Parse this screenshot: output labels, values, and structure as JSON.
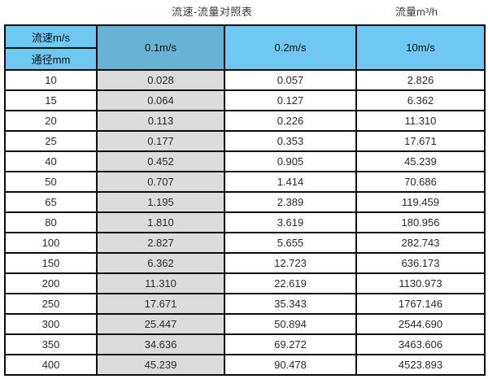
{
  "page": {
    "title": "流速-流量对照表",
    "unit_label": "流量m³/h"
  },
  "table": {
    "corner": {
      "top": "流速m/s",
      "bottom": "通径mm"
    },
    "columns": [
      "0.1m/s",
      "0.2m/s",
      "10m/s"
    ],
    "rows": [
      {
        "diameter": "10",
        "values": [
          "0.028",
          "0.057",
          "2.826"
        ]
      },
      {
        "diameter": "15",
        "values": [
          "0.064",
          "0.127",
          "6.362"
        ]
      },
      {
        "diameter": "20",
        "values": [
          "0.113",
          "0.226",
          "11.310"
        ]
      },
      {
        "diameter": "25",
        "values": [
          "0.177",
          "0.353",
          "17.671"
        ]
      },
      {
        "diameter": "40",
        "values": [
          "0.452",
          "0.905",
          "45.239"
        ]
      },
      {
        "diameter": "50",
        "values": [
          "0.707",
          "1.414",
          "70.686"
        ]
      },
      {
        "diameter": "65",
        "values": [
          "1.195",
          "2.389",
          "119.459"
        ]
      },
      {
        "diameter": "80",
        "values": [
          "1.810",
          "3.619",
          "180.956"
        ]
      },
      {
        "diameter": "100",
        "values": [
          "2.827",
          "5.655",
          "282.743"
        ]
      },
      {
        "diameter": "150",
        "values": [
          "6.362",
          "12.723",
          "636.173"
        ]
      },
      {
        "diameter": "200",
        "values": [
          "11.310",
          "22.619",
          "1130.973"
        ]
      },
      {
        "diameter": "250",
        "values": [
          "17.671",
          "35.343",
          "1767.146"
        ]
      },
      {
        "diameter": "300",
        "values": [
          "25.447",
          "50.894",
          "2544.690"
        ]
      },
      {
        "diameter": "350",
        "values": [
          "34.636",
          "69.272",
          "3463.606"
        ]
      },
      {
        "diameter": "400",
        "values": [
          "45.239",
          "90.478",
          "4523.893"
        ]
      }
    ]
  },
  "colors": {
    "header_light_blue": "#6fc8f2",
    "header_dark_blue": "#68b2d6",
    "highlight_column_gray": "#dcdcdc",
    "border_black": "#0d0d0d"
  },
  "chart_data": {
    "type": "table",
    "title": "流速-流量对照表",
    "units_note": "流量m³/h",
    "row_axis_label": "通径mm",
    "column_axis_label": "流速m/s",
    "columns": [
      "0.1m/s",
      "0.2m/s",
      "10m/s"
    ],
    "diameters_mm": [
      10,
      15,
      20,
      25,
      40,
      50,
      65,
      80,
      100,
      150,
      200,
      250,
      300,
      350,
      400
    ],
    "series": [
      {
        "name": "0.1m/s",
        "values": [
          0.028,
          0.064,
          0.113,
          0.177,
          0.452,
          0.707,
          1.195,
          1.81,
          2.827,
          6.362,
          11.31,
          17.671,
          25.447,
          34.636,
          45.239
        ]
      },
      {
        "name": "0.2m/s",
        "values": [
          0.057,
          0.127,
          0.226,
          0.353,
          0.905,
          1.414,
          2.389,
          3.619,
          5.655,
          12.723,
          22.619,
          35.343,
          50.894,
          69.272,
          90.478
        ]
      },
      {
        "name": "10m/s",
        "values": [
          2.826,
          6.362,
          11.31,
          17.671,
          45.239,
          70.686,
          119.459,
          180.956,
          282.743,
          636.173,
          1130.973,
          1767.146,
          2544.69,
          3463.606,
          4523.893
        ]
      }
    ]
  }
}
